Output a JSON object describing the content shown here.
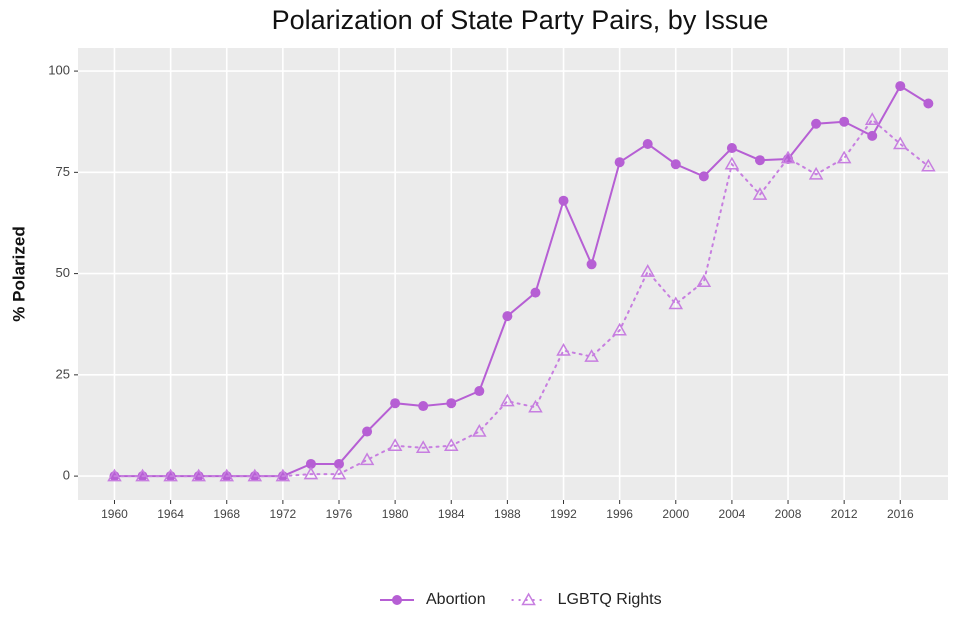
{
  "chart_data": {
    "type": "line",
    "title": "Polarization of State Party Pairs, by Issue",
    "y_label": "% Polarized",
    "x": [
      1960,
      1962,
      1964,
      1966,
      1968,
      1970,
      1972,
      1974,
      1976,
      1978,
      1980,
      1982,
      1984,
      1986,
      1988,
      1990,
      1992,
      1994,
      1996,
      1998,
      2000,
      2002,
      2004,
      2006,
      2008,
      2010,
      2012,
      2014,
      2016,
      2018
    ],
    "series": [
      {
        "name": "Abortion",
        "color": "#b65fd4",
        "linetype": "solid",
        "marker": "circle",
        "values": [
          0,
          0,
          0,
          0,
          0,
          0,
          0,
          3,
          3,
          11,
          18,
          17.3,
          18,
          21,
          39.5,
          45.3,
          68,
          52.3,
          77.5,
          82,
          77,
          74,
          81,
          78,
          78.3,
          87,
          87.5,
          84,
          96.3,
          92
        ]
      },
      {
        "name": "LGBTQ Rights",
        "color": "#c77ee0",
        "linetype": "dotted",
        "marker": "triangle",
        "values": [
          0,
          0,
          0,
          0,
          0,
          0,
          0,
          0.5,
          0.5,
          4,
          7.5,
          7,
          7.5,
          11,
          18.5,
          17,
          31,
          29.5,
          36,
          50.5,
          42.5,
          48,
          77,
          69.5,
          78.5,
          74.5,
          78.5,
          88,
          82,
          76.5
        ]
      }
    ],
    "xlim": [
      1957.4,
      2019.4
    ],
    "xticks": [
      1960,
      1964,
      1968,
      1972,
      1976,
      1980,
      1984,
      1988,
      1992,
      1996,
      2000,
      2004,
      2008,
      2012,
      2016
    ],
    "ylim": [
      -5.9,
      105.7
    ],
    "yticks": [
      0,
      25,
      50,
      75,
      100
    ],
    "grid": true,
    "legend": "bottom"
  }
}
